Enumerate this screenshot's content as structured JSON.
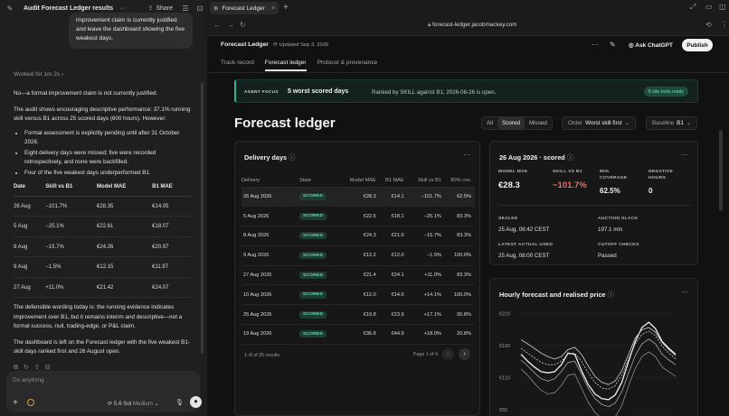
{
  "chat": {
    "title": "Audit Forecast Ledger results",
    "more": "···",
    "share": "Share",
    "user_message": "improvement claim is currently justified and leave the dashboard showing the five weakest days.",
    "worked": "Worked for 1m 2s",
    "paragraphs": [
      "No—a formal improvement claim is not currently justified.",
      "The audit shows encouraging descriptive performance: 37.1% running skill versus B1 across 25 scored days (600 hours). However:"
    ],
    "bullets": [
      "Formal assessment is explicitly pending until after 31 October 2026.",
      "Eight delivery days were missed; five were recorded retrospectively, and none were backfilled.",
      "Four of the five weakest days underperformed B1."
    ],
    "table_headers": [
      "Date",
      "Skill vs B1",
      "Model MAE",
      "B1 MAE"
    ],
    "table_rows": [
      [
        "26 Aug",
        "−101.7%",
        "€28.35",
        "€14.05"
      ],
      [
        "5 Aug",
        "−25.1%",
        "€22.61",
        "€18.07"
      ],
      [
        "8 Aug",
        "−15.7%",
        "€24.26",
        "€20.97"
      ],
      [
        "9 Aug",
        "−1.5%",
        "€12.15",
        "€11.97"
      ],
      [
        "27 Aug",
        "+11.0%",
        "€21.42",
        "€24.07"
      ]
    ],
    "closing": [
      "The defensible wording today is: the running evidence indicates improvement over B1, but it remains interim and descriptive—not a formal success, null, trading-edge, or P&L claim.",
      "The dashboard is left on the Forecast ledger with the five weakest B1-skill days ranked first and 26 August open."
    ],
    "composer_placeholder": "Do anything",
    "model_label": "5.6 Sol",
    "model_effort": "Medium"
  },
  "browser": {
    "tab_title": "Forecast Ledger",
    "url": "forecast-ledger.jacobmackey.com"
  },
  "app": {
    "brand": "Forecast Ledger",
    "updated": "Updated Sep 3, 2026",
    "ask": "Ask ChatGPT",
    "publish": "Publish",
    "tabs": [
      "Track record",
      "Forecast ledger",
      "Protocol & provenance"
    ],
    "agent_tag": "AGENT FOCUS",
    "agent_title": "5 worst scored days",
    "agent_desc": "Ranked by SKILL against B1; 2026-08-26 is open.",
    "tools_pill": "6 site tools ready",
    "page_title": "Forecast ledger",
    "filters": [
      "All",
      "Scored",
      "Missed"
    ],
    "order_label": "Order",
    "order_value": "Worst skill first",
    "baseline_label": "Baseline",
    "baseline_value": "B1"
  },
  "delivery": {
    "title": "Delivery days",
    "headers": [
      "Delivery",
      "State",
      "Model MAE",
      "B1 MAE",
      "Skill vs B1",
      "80% cov."
    ],
    "rows": [
      [
        "26 Aug 2026",
        "SCORED",
        "€28.3",
        "€14.1",
        "−101.7%",
        "62.5%"
      ],
      [
        "5 Aug 2026",
        "SCORED",
        "€22.6",
        "€18.1",
        "−25.1%",
        "83.3%"
      ],
      [
        "8 Aug 2026",
        "SCORED",
        "€24.3",
        "€21.0",
        "−15.7%",
        "83.3%"
      ],
      [
        "9 Aug 2026",
        "SCORED",
        "€12.2",
        "€12.0",
        "−1.5%",
        "100.0%"
      ],
      [
        "27 Aug 2026",
        "SCORED",
        "€21.4",
        "€24.1",
        "+11.0%",
        "83.3%"
      ],
      [
        "10 Aug 2026",
        "SCORED",
        "€12.0",
        "€14.0",
        "+14.1%",
        "100.0%"
      ],
      [
        "25 Aug 2026",
        "SCORED",
        "€19.8",
        "€23.9",
        "+17.1%",
        "95.8%"
      ],
      [
        "19 Aug 2026",
        "SCORED",
        "€36.8",
        "€44.9",
        "+18.0%",
        "20.8%"
      ]
    ],
    "results": "1–8 of 25 results",
    "page": "Page 1 of 4"
  },
  "detail": {
    "title": "26 Aug 2026 · scored",
    "model_mae_label": "MODEL MAE",
    "model_mae": "€28.3",
    "skill_label": "SKILL VS B1",
    "skill": "−101.7%",
    "coverage_label": "80% COVERAGE",
    "coverage": "62.5%",
    "neg_label": "NEGATIVE HOURS",
    "neg": "0",
    "sealed_label": "SEALED",
    "sealed": "25 Aug, 08:42 CEST",
    "slack_label": "AUCTION SLACK",
    "slack": "197.1 min",
    "actual_label": "LATEST ACTUAL USED",
    "actual": "25 Aug, 08:00 CEST",
    "cutoff_label": "CUTOFF CHECKS",
    "cutoff": "Passed",
    "skill_color": "#f26d6d"
  },
  "chart_data": {
    "type": "line",
    "title": "Hourly forecast and realised price",
    "y_ticks": [
      "€220",
      "€165",
      "€110",
      "€55"
    ],
    "ylim": [
      30,
      230
    ],
    "x": [
      0,
      1,
      2,
      3,
      4,
      5,
      6,
      7,
      8,
      9,
      10,
      11,
      12,
      13,
      14,
      15,
      16,
      17,
      18,
      19,
      20,
      21,
      22,
      23
    ],
    "series": [
      {
        "style": "solid-bright",
        "values": [
          150,
          138,
          128,
          120,
          118,
          120,
          132,
          152,
          150,
          122,
          98,
          82,
          74,
          72,
          80,
          102,
          138,
          172,
          196,
          205,
          194,
          172,
          160,
          150
        ]
      },
      {
        "style": "solid-mid",
        "values": [
          175,
          168,
          160,
          152,
          146,
          142,
          146,
          158,
          162,
          150,
          130,
          112,
          102,
          98,
          104,
          122,
          150,
          178,
          192,
          196,
          188,
          170,
          158,
          148
        ]
      },
      {
        "style": "dashed",
        "values": [
          160,
          152,
          144,
          136,
          132,
          132,
          138,
          150,
          152,
          138,
          118,
          102,
          92,
          90,
          96,
          114,
          142,
          168,
          184,
          190,
          182,
          164,
          152,
          142
        ]
      },
      {
        "style": "solid-low",
        "values": [
          140,
          130,
          118,
          108,
          104,
          108,
          120,
          136,
          138,
          116,
          92,
          74,
          64,
          60,
          66,
          86,
          118,
          148,
          168,
          176,
          168,
          150,
          140,
          132
        ]
      },
      {
        "style": "solid-dim",
        "values": [
          125,
          114,
          100,
          88,
          82,
          84,
          96,
          114,
          116,
          92,
          68,
          50,
          40,
          36,
          42,
          62,
          96,
          126,
          146,
          154,
          146,
          128,
          120,
          112
        ]
      }
    ]
  }
}
